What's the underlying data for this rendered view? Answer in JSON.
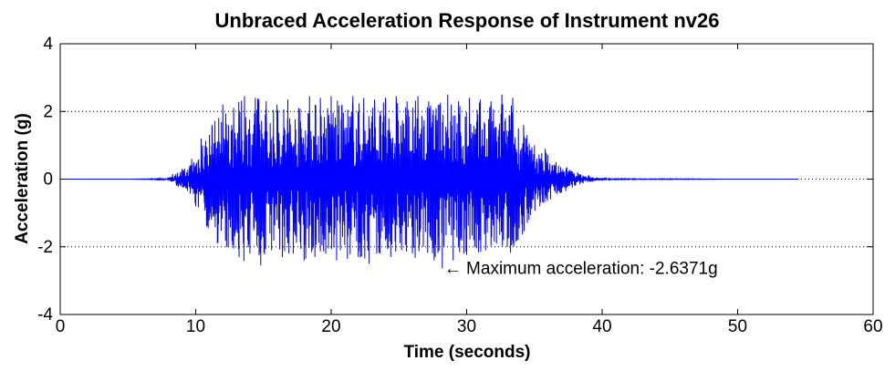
{
  "chart_data": {
    "type": "line",
    "title": "Unbraced Acceleration Response of Instrument nv26",
    "xlabel": "Time (seconds)",
    "ylabel": "Acceleration (g)",
    "xlim": [
      0,
      60
    ],
    "ylim": [
      -4,
      4
    ],
    "xticks": [
      0,
      10,
      20,
      30,
      40,
      50,
      60
    ],
    "yticks": [
      -4,
      -2,
      0,
      2,
      4
    ],
    "xtick_labels": [
      "0",
      "10",
      "20",
      "30",
      "40",
      "50",
      "60"
    ],
    "ytick_labels": [
      "-4",
      "-2",
      "0",
      "2",
      "4"
    ],
    "grid": "dotted horizontal at y = -2, 0, 2",
    "series_color": "#0000ff",
    "time_range": [
      0,
      54.5
    ],
    "series": [
      {
        "x": [
          0,
          5,
          8,
          8.3,
          8.6,
          9,
          9.4,
          9.7,
          10,
          10.4,
          10.8,
          11.2,
          11.6,
          12,
          12.4,
          12.8,
          13.2,
          13.6,
          14,
          14.4,
          14.8,
          15.2,
          15.6,
          16,
          16.4,
          16.8,
          17.2,
          17.6,
          18,
          18.4,
          18.8,
          19.2,
          19.6,
          20,
          20.4,
          20.8,
          21.2,
          21.6,
          22,
          22.4,
          22.8,
          23.2,
          23.6,
          24,
          24.4,
          24.8,
          25.2,
          25.6,
          26,
          26.4,
          26.8,
          27.2,
          27.6,
          28,
          28.2,
          28.6,
          29,
          29.4,
          29.8,
          30.2,
          30.6,
          31,
          31.4,
          31.8,
          32.2,
          32.6,
          33,
          33.4,
          33.8,
          34.2,
          34.6,
          35,
          35.4,
          35.8,
          36.2,
          36.6,
          37,
          37.4,
          37.8,
          38.2,
          38.6,
          39,
          40,
          42,
          45,
          50,
          54.5
        ],
        "y": [
          0,
          0,
          0.02,
          0.15,
          -0.2,
          0.3,
          -0.35,
          0.6,
          -0.8,
          1.2,
          -1.4,
          1.6,
          -1.9,
          2.2,
          -2.0,
          2.1,
          -2.3,
          2.45,
          -2.2,
          2.4,
          -2.55,
          2.3,
          -2.1,
          2.2,
          -2.3,
          2.35,
          -2.2,
          2.1,
          -2.4,
          2.45,
          -2.3,
          2.4,
          -2.2,
          2.45,
          -2.4,
          2.2,
          -2.35,
          2.45,
          -2.3,
          2.4,
          -2.5,
          2.35,
          -2.2,
          2.4,
          -2.3,
          2.45,
          -2.1,
          2.3,
          -2.2,
          2.45,
          -2.0,
          2.3,
          -2.4,
          2.2,
          -2.6371,
          2.5,
          -2.4,
          2.3,
          -2.2,
          2.4,
          -2.0,
          2.35,
          -2.1,
          2.3,
          -1.9,
          2.5,
          -2.0,
          2.4,
          -1.8,
          1.6,
          -1.2,
          1.0,
          -0.8,
          0.9,
          -0.6,
          0.5,
          -0.4,
          0.35,
          -0.25,
          0.2,
          -0.12,
          0.1,
          0.02,
          0.01,
          0.01,
          0.0,
          0.0
        ]
      }
    ],
    "annotation": {
      "text": "← Maximum acceleration: -2.6371g",
      "x": 28.2,
      "y": -2.6371
    }
  }
}
